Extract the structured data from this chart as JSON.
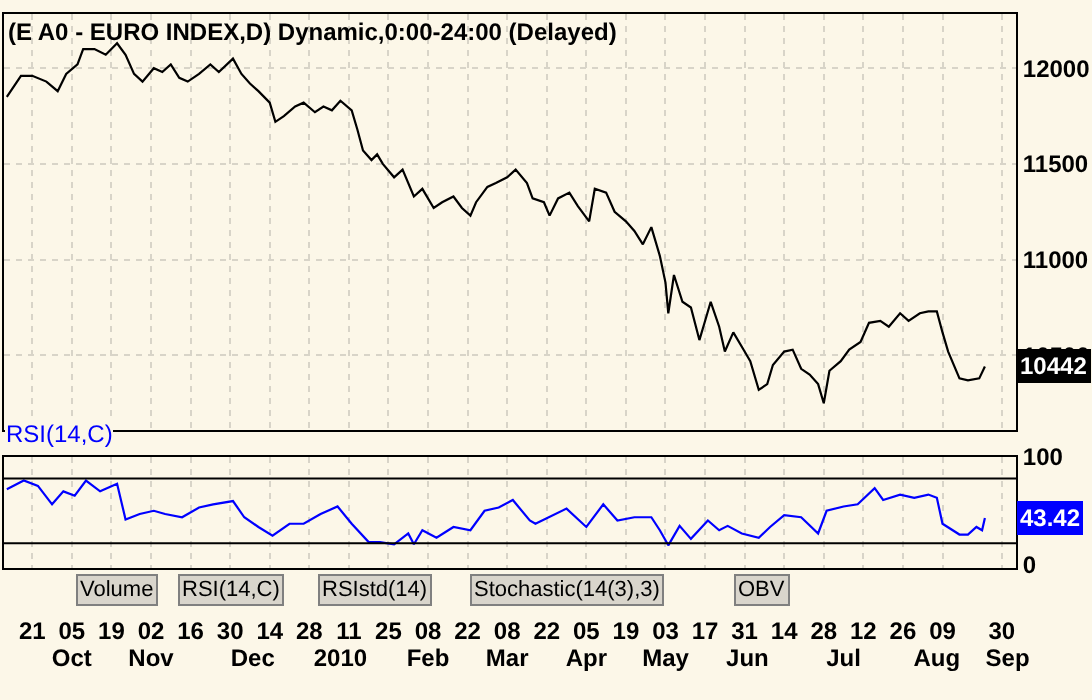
{
  "chart_data": [
    {
      "type": "line",
      "title": "(E A0 - EURO INDEX,D) Dynamic,0:00-24:00 (Delayed)",
      "x": [
        "2009-09-12",
        "2009-09-17",
        "2009-09-21",
        "2009-09-26",
        "2009-09-30",
        "2009-10-03",
        "2009-10-07",
        "2009-10-09",
        "2009-10-13",
        "2009-10-17",
        "2009-10-21",
        "2009-10-24",
        "2009-10-27",
        "2009-10-30",
        "2009-11-03",
        "2009-11-06",
        "2009-11-09",
        "2009-11-12",
        "2009-11-15",
        "2009-11-19",
        "2009-11-23",
        "2009-11-26",
        "2009-12-01",
        "2009-12-04",
        "2009-12-07",
        "2009-12-10",
        "2009-12-14",
        "2009-12-16",
        "2009-12-19",
        "2009-12-23",
        "2009-12-26",
        "2009-12-30",
        "2010-01-02",
        "2010-01-05",
        "2010-01-08",
        "2010-01-12",
        "2010-01-14",
        "2010-01-16",
        "2010-01-19",
        "2010-01-21",
        "2010-01-23",
        "2010-01-27",
        "2010-01-30",
        "2010-02-03",
        "2010-02-06",
        "2010-02-10",
        "2010-02-13",
        "2010-02-17",
        "2010-02-20",
        "2010-02-23",
        "2010-02-25",
        "2010-03-01",
        "2010-03-04",
        "2010-03-08",
        "2010-03-11",
        "2010-03-15",
        "2010-03-17",
        "2010-03-21",
        "2010-03-23",
        "2010-03-26",
        "2010-03-30",
        "2010-04-02",
        "2010-04-06",
        "2010-04-08",
        "2010-04-12",
        "2010-04-15",
        "2010-04-19",
        "2010-04-22",
        "2010-04-25",
        "2010-04-28",
        "2010-05-01",
        "2010-05-03",
        "2010-05-04",
        "2010-05-06",
        "2010-05-09",
        "2010-05-12",
        "2010-05-15",
        "2010-05-17",
        "2010-05-19",
        "2010-05-22",
        "2010-05-24",
        "2010-05-27",
        "2010-05-31",
        "2010-06-02",
        "2010-06-05",
        "2010-06-08",
        "2010-06-10",
        "2010-06-14",
        "2010-06-17",
        "2010-06-20",
        "2010-06-23",
        "2010-06-26",
        "2010-06-28",
        "2010-06-30",
        "2010-07-04",
        "2010-07-07",
        "2010-07-11",
        "2010-07-14",
        "2010-07-18",
        "2010-07-21",
        "2010-07-25",
        "2010-07-28",
        "2010-08-01",
        "2010-08-04",
        "2010-08-07",
        "2010-08-09",
        "2010-08-11",
        "2010-08-15",
        "2010-08-18",
        "2010-08-22",
        "2010-08-24"
      ],
      "series": [
        {
          "color": "#000000",
          "values": [
            11850,
            11960,
            11960,
            11930,
            11880,
            11970,
            12020,
            12100,
            12100,
            12070,
            12130,
            12070,
            11970,
            11930,
            12000,
            11980,
            12020,
            11950,
            11930,
            11970,
            12020,
            11980,
            12050,
            11970,
            11920,
            11880,
            11820,
            11720,
            11750,
            11800,
            11820,
            11770,
            11800,
            11780,
            11830,
            11780,
            11680,
            11570,
            11520,
            11550,
            11500,
            11430,
            11470,
            11330,
            11370,
            11270,
            11300,
            11330,
            11270,
            11230,
            11300,
            11380,
            11400,
            11430,
            11470,
            11400,
            11320,
            11300,
            11230,
            11320,
            11350,
            11280,
            11200,
            11370,
            11350,
            11250,
            11200,
            11150,
            11080,
            11170,
            11020,
            10880,
            10720,
            10920,
            10780,
            10750,
            10580,
            10680,
            10780,
            10650,
            10520,
            10620,
            10520,
            10470,
            10320,
            10350,
            10450,
            10520,
            10530,
            10430,
            10400,
            10350,
            10250,
            10420,
            10470,
            10530,
            10570,
            10670,
            10680,
            10650,
            10720,
            10680,
            10720,
            10730,
            10730,
            10620,
            10520,
            10380,
            10370,
            10380,
            10442
          ],
          "value_labels": [
            null,
            null,
            null,
            null,
            null,
            null,
            null,
            null,
            null,
            null,
            null,
            null,
            null,
            null,
            null,
            null,
            null,
            null,
            null,
            null,
            null,
            null,
            null,
            null,
            null,
            null,
            null,
            null,
            null,
            null,
            null,
            null,
            null,
            null,
            null,
            null,
            null,
            null,
            null,
            null,
            null,
            null,
            null,
            null,
            null,
            null,
            null,
            null,
            null,
            null,
            null,
            null,
            null,
            null,
            null,
            null,
            null,
            null,
            null,
            null,
            null,
            null,
            null,
            null,
            null,
            null,
            null,
            null,
            null,
            null,
            null,
            null,
            null,
            null,
            null,
            null,
            null,
            null,
            null,
            null,
            null,
            null,
            null,
            null,
            null,
            null,
            null,
            null,
            null,
            null,
            null,
            null,
            null,
            null,
            null,
            null,
            null,
            null,
            null,
            null,
            null,
            null,
            null,
            null,
            null,
            null,
            null,
            null,
            null,
            null,
            "10442"
          ]
        }
      ],
      "xlim": [
        "2009-09-11",
        "2010-09-04"
      ],
      "ylim": [
        10113,
        12283
      ],
      "yticks": [
        10500,
        11000,
        11500,
        12000
      ],
      "grid": true,
      "tick_labels": "y"
    },
    {
      "type": "line",
      "x": [
        "2009-09-12",
        "2009-09-18",
        "2009-09-23",
        "2009-09-28",
        "2009-10-02",
        "2009-10-06",
        "2009-10-10",
        "2009-10-15",
        "2009-10-21",
        "2009-10-24",
        "2009-10-29",
        "2009-11-03",
        "2009-11-07",
        "2009-11-13",
        "2009-11-19",
        "2009-11-24",
        "2009-12-01",
        "2009-12-05",
        "2009-12-10",
        "2009-12-15",
        "2009-12-21",
        "2009-12-26",
        "2010-01-01",
        "2010-01-07",
        "2010-01-12",
        "2010-01-18",
        "2010-01-22",
        "2010-01-27",
        "2010-02-01",
        "2010-02-03",
        "2010-02-06",
        "2010-02-11",
        "2010-02-17",
        "2010-02-23",
        "2010-02-28",
        "2010-03-05",
        "2010-03-10",
        "2010-03-16",
        "2010-03-18",
        "2010-03-29",
        "2010-04-05",
        "2010-04-11",
        "2010-04-16",
        "2010-04-22",
        "2010-04-28",
        "2010-05-01",
        "2010-05-04",
        "2010-05-08",
        "2010-05-12",
        "2010-05-18",
        "2010-05-22",
        "2010-05-25",
        "2010-05-30",
        "2010-06-05",
        "2010-06-09",
        "2010-06-14",
        "2010-06-20",
        "2010-06-26",
        "2010-06-29",
        "2010-07-05",
        "2010-07-10",
        "2010-07-16",
        "2010-07-19",
        "2010-07-25",
        "2010-07-30",
        "2010-08-04",
        "2010-08-07",
        "2010-08-09",
        "2010-08-15",
        "2010-08-18",
        "2010-08-21",
        "2010-08-23",
        "2010-08-24"
      ],
      "series": [
        {
          "name": "RSI(14,C)",
          "color": "#0000ff",
          "values": [
            70,
            78,
            73,
            56,
            68,
            64,
            78,
            68,
            75,
            42,
            47,
            50,
            47,
            44,
            53,
            56,
            59,
            44,
            35,
            27,
            38,
            38,
            47,
            54,
            38,
            21,
            21,
            19,
            29,
            19,
            32,
            25,
            35,
            32,
            50,
            53,
            60,
            41,
            38,
            52,
            35,
            56,
            41,
            44,
            44,
            32,
            18,
            36,
            24,
            41,
            32,
            36,
            29,
            25,
            35,
            46,
            44,
            29,
            50,
            54,
            56,
            71,
            60,
            65,
            62,
            65,
            62,
            38,
            28,
            28,
            35,
            32,
            43.42
          ],
          "value_labels": [
            null,
            null,
            null,
            null,
            null,
            null,
            null,
            null,
            null,
            null,
            null,
            null,
            null,
            null,
            null,
            null,
            null,
            null,
            null,
            null,
            null,
            null,
            null,
            null,
            null,
            null,
            null,
            null,
            null,
            null,
            null,
            null,
            null,
            null,
            null,
            null,
            null,
            null,
            null,
            null,
            null,
            null,
            null,
            null,
            null,
            null,
            null,
            null,
            null,
            null,
            null,
            null,
            null,
            null,
            null,
            null,
            null,
            null,
            null,
            null,
            null,
            null,
            null,
            null,
            null,
            null,
            null,
            null,
            null,
            null,
            null,
            null,
            "43.42"
          ]
        }
      ],
      "xlim": [
        "2009-09-11",
        "2010-09-04"
      ],
      "xticks": [
        {
          "value": "2009-09-21",
          "label": "21"
        },
        {
          "value": "2009-10-05",
          "label": "05"
        },
        {
          "value": "2009-10-19",
          "label": "19"
        },
        {
          "value": "2009-11-02",
          "label": "02"
        },
        {
          "value": "2009-11-16",
          "label": "16"
        },
        {
          "value": "2009-11-30",
          "label": "30"
        },
        {
          "value": "2009-12-14",
          "label": "14"
        },
        {
          "value": "2009-12-28",
          "label": "28"
        },
        {
          "value": "2010-01-11",
          "label": "11"
        },
        {
          "value": "2010-01-25",
          "label": "25"
        },
        {
          "value": "2010-02-08",
          "label": "08"
        },
        {
          "value": "2010-02-22",
          "label": "22"
        },
        {
          "value": "2010-03-08",
          "label": "08"
        },
        {
          "value": "2010-03-22",
          "label": "22"
        },
        {
          "value": "2010-04-05",
          "label": "05"
        },
        {
          "value": "2010-04-19",
          "label": "19"
        },
        {
          "value": "2010-05-03",
          "label": "03"
        },
        {
          "value": "2010-05-17",
          "label": "17"
        },
        {
          "value": "2010-05-31",
          "label": "31"
        },
        {
          "value": "2010-06-14",
          "label": "14"
        },
        {
          "value": "2010-06-28",
          "label": "28"
        },
        {
          "value": "2010-07-12",
          "label": "12"
        },
        {
          "value": "2010-07-26",
          "label": "26"
        },
        {
          "value": "2010-08-09",
          "label": "09"
        },
        {
          "value": "2010-08-30",
          "label": "30"
        }
      ],
      "x2lim": [
        "2009-09-11",
        "2010-09-04"
      ],
      "x2ticks": [
        {
          "value": "2009-10-05",
          "label": "Oct"
        },
        {
          "value": "2009-11-02",
          "label": "Nov"
        },
        {
          "value": "2009-12-08",
          "label": "Dec"
        },
        {
          "value": "2010-01-08",
          "label": "2010"
        },
        {
          "value": "2010-02-08",
          "label": "Feb"
        },
        {
          "value": "2010-03-08",
          "label": "Mar"
        },
        {
          "value": "2010-04-05",
          "label": "Apr"
        },
        {
          "value": "2010-05-03",
          "label": "May"
        },
        {
          "value": "2010-06-01",
          "label": "Jun"
        },
        {
          "value": "2010-07-05",
          "label": "Jul"
        },
        {
          "value": "2010-08-07",
          "label": "Aug"
        },
        {
          "value": "2010-09-01",
          "label": "Sep"
        }
      ],
      "ylim": [
        -3,
        100
      ],
      "yticks": [
        0,
        100
      ],
      "ref_lines": [
        {
          "axis": "y",
          "value": 80,
          "color": "#000000"
        },
        {
          "axis": "y",
          "value": 20,
          "color": "#000000"
        }
      ],
      "grid": "x",
      "annotations": [
        "Volume",
        "RSI(14,C)",
        "RSIstd(14)",
        "Stochastic(14(3),3)",
        "OBV"
      ]
    }
  ]
}
